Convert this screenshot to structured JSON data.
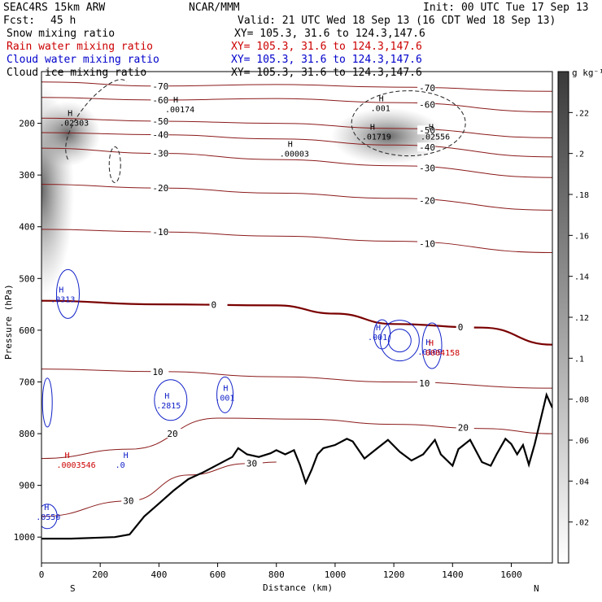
{
  "header": {
    "model": "SEAC4RS 15km ARW",
    "org": "NCAR/MMM",
    "init": "Init: 00 UTC Tue 17 Sep 13",
    "fcst_label": "Fcst:",
    "fcst_value": "45 h",
    "valid": "Valid: 21 UTC Wed 18 Sep 13 (16 CDT Wed 18 Sep 13)"
  },
  "fields": [
    {
      "name": "Snow mixing ratio",
      "xy": "XY= 105.3, 31.6 to 124.3,147.6",
      "color": "#000000"
    },
    {
      "name": "Rain water mixing ratio",
      "xy": "XY= 105.3, 31.6 to 124.3,147.6",
      "color": "#cc0000"
    },
    {
      "name": "Cloud water mixing ratio",
      "xy": "XY= 105.3, 31.6 to 124.3,147.6",
      "color": "#0000cc"
    },
    {
      "name": "Cloud ice mixing ratio",
      "xy": "XY= 105.3, 31.6 to 124.3,147.6",
      "color": "#000000"
    }
  ],
  "chart_data": {
    "type": "cross-section",
    "xlabel": "Distance (km)",
    "ylabel": "Pressure (hPa)",
    "x_ticks": [
      0,
      200,
      400,
      600,
      800,
      1000,
      1200,
      1400,
      1600
    ],
    "y_ticks": [
      200,
      300,
      400,
      500,
      600,
      700,
      800,
      900,
      1000
    ],
    "xlim": [
      0,
      1740
    ],
    "ylim": [
      100,
      1050
    ],
    "x_end_labels": {
      "left": "S",
      "right": "N"
    },
    "colorbar": {
      "unit": "g kg⁻¹",
      "ticks": [
        ".02",
        ".04",
        ".06",
        ".08",
        ".1",
        ".12",
        ".14",
        ".16",
        ".18",
        ".2",
        ".22"
      ],
      "values": [
        0.02,
        0.04,
        0.06,
        0.08,
        0.1,
        0.12,
        0.14,
        0.16,
        0.18,
        0.2,
        0.22
      ],
      "max": 0.24
    },
    "terrain": [
      [
        0,
        1003
      ],
      [
        100,
        1003
      ],
      [
        250,
        1000
      ],
      [
        300,
        995
      ],
      [
        350,
        960
      ],
      [
        400,
        935
      ],
      [
        450,
        910
      ],
      [
        500,
        888
      ],
      [
        550,
        875
      ],
      [
        600,
        860
      ],
      [
        650,
        845
      ],
      [
        670,
        828
      ],
      [
        700,
        840
      ],
      [
        740,
        845
      ],
      [
        780,
        838
      ],
      [
        800,
        832
      ],
      [
        830,
        840
      ],
      [
        860,
        832
      ],
      [
        880,
        860
      ],
      [
        900,
        895
      ],
      [
        920,
        870
      ],
      [
        940,
        840
      ],
      [
        960,
        828
      ],
      [
        1000,
        822
      ],
      [
        1040,
        810
      ],
      [
        1060,
        815
      ],
      [
        1100,
        848
      ],
      [
        1140,
        830
      ],
      [
        1180,
        812
      ],
      [
        1220,
        835
      ],
      [
        1260,
        852
      ],
      [
        1300,
        840
      ],
      [
        1340,
        812
      ],
      [
        1360,
        840
      ],
      [
        1400,
        862
      ],
      [
        1420,
        830
      ],
      [
        1460,
        812
      ],
      [
        1500,
        855
      ],
      [
        1530,
        862
      ],
      [
        1550,
        840
      ],
      [
        1580,
        810
      ],
      [
        1600,
        820
      ],
      [
        1620,
        840
      ],
      [
        1640,
        822
      ],
      [
        1660,
        860
      ],
      [
        1680,
        820
      ],
      [
        1720,
        725
      ],
      [
        1740,
        750
      ]
    ],
    "isotherms": [
      {
        "label": "-70",
        "pts": [
          [
            0,
            120
          ],
          [
            400,
            128
          ],
          [
            800,
            125
          ],
          [
            1200,
            130
          ],
          [
            1740,
            138
          ]
        ]
      },
      {
        "label": "-60",
        "pts": [
          [
            0,
            150
          ],
          [
            400,
            155
          ],
          [
            800,
            152
          ],
          [
            1200,
            160
          ],
          [
            1740,
            178
          ]
        ]
      },
      {
        "label": "-50",
        "pts": [
          [
            0,
            190
          ],
          [
            400,
            196
          ],
          [
            800,
            200
          ],
          [
            1200,
            210
          ],
          [
            1740,
            228
          ]
        ]
      },
      {
        "label": "-40",
        "pts": [
          [
            0,
            218
          ],
          [
            400,
            222
          ],
          [
            800,
            230
          ],
          [
            1200,
            242
          ],
          [
            1740,
            265
          ]
        ]
      },
      {
        "label": "-30",
        "pts": [
          [
            0,
            248
          ],
          [
            400,
            258
          ],
          [
            800,
            270
          ],
          [
            1200,
            282
          ],
          [
            1740,
            305
          ]
        ]
      },
      {
        "label": "-20",
        "pts": [
          [
            0,
            318
          ],
          [
            400,
            325
          ],
          [
            800,
            335
          ],
          [
            1200,
            345
          ],
          [
            1740,
            368
          ]
        ]
      },
      {
        "label": "-10",
        "pts": [
          [
            0,
            405
          ],
          [
            400,
            410
          ],
          [
            800,
            418
          ],
          [
            1200,
            428
          ],
          [
            1740,
            450
          ]
        ]
      },
      {
        "label": "0",
        "pts": [
          [
            0,
            543
          ],
          [
            400,
            550
          ],
          [
            800,
            552
          ],
          [
            1000,
            568
          ],
          [
            1200,
            588
          ],
          [
            1500,
            595
          ],
          [
            1740,
            628
          ]
        ]
      },
      {
        "label": "10",
        "pts": [
          [
            0,
            675
          ],
          [
            400,
            680
          ],
          [
            800,
            690
          ],
          [
            1200,
            700
          ],
          [
            1740,
            712
          ]
        ]
      },
      {
        "label": "20",
        "pts": [
          [
            0,
            848
          ],
          [
            300,
            830
          ],
          [
            600,
            770
          ],
          [
            900,
            772
          ],
          [
            1200,
            782
          ],
          [
            1500,
            790
          ],
          [
            1740,
            800
          ]
        ]
      },
      {
        "label": "30",
        "pts": [
          [
            0,
            960
          ],
          [
            300,
            930
          ],
          [
            500,
            880
          ],
          [
            700,
            858
          ],
          [
            800,
            855
          ]
        ]
      }
    ],
    "rain_max": [
      {
        "x": 90,
        "p": 860,
        "value": ".0003546"
      },
      {
        "x": 1330,
        "p": 643,
        "value": ".0004158"
      }
    ],
    "cloudwater_max": [
      {
        "x": 70,
        "p": 540,
        "value": ".0313"
      },
      {
        "x": 430,
        "p": 745,
        "value": ".2815"
      },
      {
        "x": 630,
        "p": 730,
        "value": ".001"
      },
      {
        "x": 1150,
        "p": 613,
        "value": ".001"
      },
      {
        "x": 1320,
        "p": 641,
        "value": ".0109"
      },
      {
        "x": 290,
        "p": 860,
        "value": ".0"
      },
      {
        "x": 20,
        "p": 960,
        "value": ".0550"
      }
    ],
    "ice_max": [
      {
        "x": 100,
        "p": 198,
        "value": ".02303"
      },
      {
        "x": 460,
        "p": 172,
        "value": ".00174"
      },
      {
        "x": 850,
        "p": 258,
        "value": ".00003"
      },
      {
        "x": 1130,
        "p": 225,
        "value": ".01719"
      },
      {
        "x": 1330,
        "p": 225,
        "value": ".02556"
      },
      {
        "x": 1160,
        "p": 170,
        "value": ".001"
      }
    ]
  }
}
